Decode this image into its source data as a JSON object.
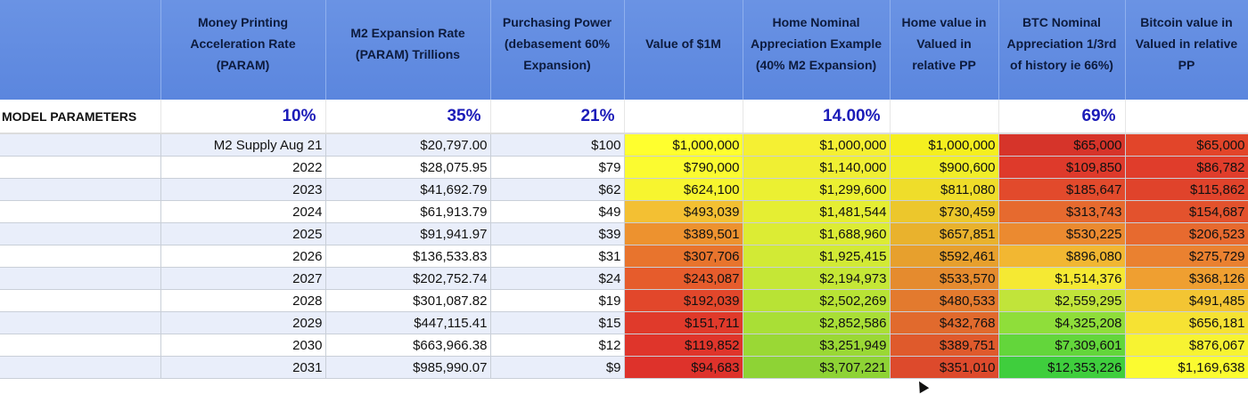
{
  "headers": [
    "",
    "Money Printing Acceleration Rate (PARAM)",
    "M2 Expansion Rate (PARAM) Trillions",
    "Purchasing Power (debasement 60% Expansion)",
    "Value of $1M",
    "Home Nominal Appreciation Example (40% M2 Expansion)",
    "Home value in Valued in relative PP",
    "BTC Nominal Appreciation 1/3rd of history ie 66%)",
    "Bitcoin value in Valued in relative PP"
  ],
  "params": {
    "label": "MODEL PARAMETERS",
    "values": [
      "10%",
      "35%",
      "21%",
      "",
      "14.00%",
      "",
      "69%",
      ""
    ]
  },
  "rows": [
    {
      "label": "M2 Supply Aug 21",
      "cells": [
        "$20,797.00",
        "$100",
        "$1,000,000",
        "$1,000,000",
        "$1,000,000",
        "$65,000",
        "$65,000"
      ]
    },
    {
      "label": "2022",
      "cells": [
        "$28,075.95",
        "$79",
        "$790,000",
        "$1,140,000",
        "$900,600",
        "$109,850",
        "$86,782"
      ]
    },
    {
      "label": "2023",
      "cells": [
        "$41,692.79",
        "$62",
        "$624,100",
        "$1,299,600",
        "$811,080",
        "$185,647",
        "$115,862"
      ]
    },
    {
      "label": "2024",
      "cells": [
        "$61,913.79",
        "$49",
        "$493,039",
        "$1,481,544",
        "$730,459",
        "$313,743",
        "$154,687"
      ]
    },
    {
      "label": "2025",
      "cells": [
        "$91,941.97",
        "$39",
        "$389,501",
        "$1,688,960",
        "$657,851",
        "$530,225",
        "$206,523"
      ]
    },
    {
      "label": "2026",
      "cells": [
        "$136,533.83",
        "$31",
        "$307,706",
        "$1,925,415",
        "$592,461",
        "$896,080",
        "$275,729"
      ]
    },
    {
      "label": "2027",
      "cells": [
        "$202,752.74",
        "$24",
        "$243,087",
        "$2,194,973",
        "$533,570",
        "$1,514,376",
        "$368,126"
      ]
    },
    {
      "label": "2028",
      "cells": [
        "$301,087.82",
        "$19",
        "$192,039",
        "$2,502,269",
        "$480,533",
        "$2,559,295",
        "$491,485"
      ]
    },
    {
      "label": "2029",
      "cells": [
        "$447,115.41",
        "$15",
        "$151,711",
        "$2,852,586",
        "$432,768",
        "$4,325,208",
        "$656,181"
      ]
    },
    {
      "label": "2030",
      "cells": [
        "$663,966.38",
        "$12",
        "$119,852",
        "$3,251,949",
        "$389,751",
        "$7,309,601",
        "$876,067"
      ]
    },
    {
      "label": "2031",
      "cells": [
        "$985,990.07",
        "$9",
        "$94,683",
        "$3,707,221",
        "$351,010",
        "$12,353,226",
        "$1,169,638"
      ]
    }
  ],
  "heat_colors": [
    [
      "#ffff2e",
      "#f5f033",
      "#f5ef1f",
      "#d6342a",
      "#e2452a"
    ],
    [
      "#fbfb30",
      "#f0ef33",
      "#f1ee28",
      "#de3a2b",
      "#e03d2b"
    ],
    [
      "#f7f52f",
      "#ebf032",
      "#efdd2a",
      "#e24a2c",
      "#e0432b"
    ],
    [
      "#f3c033",
      "#e5ee33",
      "#ecc72c",
      "#e66a2f",
      "#e3522d"
    ],
    [
      "#ed922f",
      "#dcec34",
      "#e9b22d",
      "#eb8a30",
      "#e76a2f"
    ],
    [
      "#e8742d",
      "#d2ea35",
      "#e7a02d",
      "#f2b732",
      "#ea8130"
    ],
    [
      "#e65c2c",
      "#c5e736",
      "#e58b2e",
      "#f5e933",
      "#ef9f31"
    ],
    [
      "#e2472b",
      "#b8e335",
      "#e37a2e",
      "#c1e43a",
      "#f3c533"
    ],
    [
      "#e03a2b",
      "#a9df36",
      "#e16a2d",
      "#8fde3a",
      "#f6e233"
    ],
    [
      "#df352b",
      "#9ad835",
      "#df5a2c",
      "#63d63b",
      "#f7f332"
    ],
    [
      "#de322b",
      "#8ed335",
      "#dd4a2c",
      "#3fce3d",
      "#fbfb30"
    ]
  ]
}
